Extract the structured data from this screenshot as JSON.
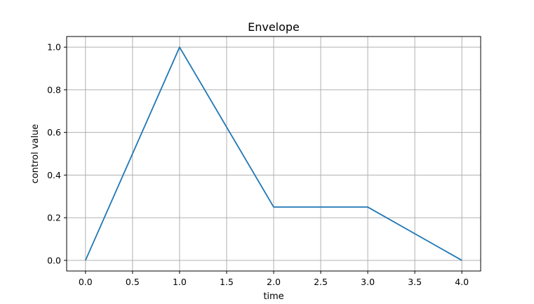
{
  "chart_data": {
    "type": "line",
    "title": "Envelope",
    "xlabel": "time",
    "ylabel": "control value",
    "xlim": [
      -0.2,
      4.2
    ],
    "ylim": [
      -0.05,
      1.05
    ],
    "xticks": [
      0.0,
      0.5,
      1.0,
      1.5,
      2.0,
      2.5,
      3.0,
      3.5,
      4.0
    ],
    "yticks": [
      0.0,
      0.2,
      0.4,
      0.6,
      0.8,
      1.0
    ],
    "xtick_labels": [
      "0.0",
      "0.5",
      "1.0",
      "1.5",
      "2.0",
      "2.5",
      "3.0",
      "3.5",
      "4.0"
    ],
    "ytick_labels": [
      "0.0",
      "0.2",
      "0.4",
      "0.6",
      "0.8",
      "1.0"
    ],
    "grid": true,
    "series": [
      {
        "color": "#1f77b4",
        "x": [
          0,
          1,
          2,
          3,
          4
        ],
        "y": [
          0,
          1,
          0.25,
          0.25,
          0
        ]
      }
    ]
  }
}
